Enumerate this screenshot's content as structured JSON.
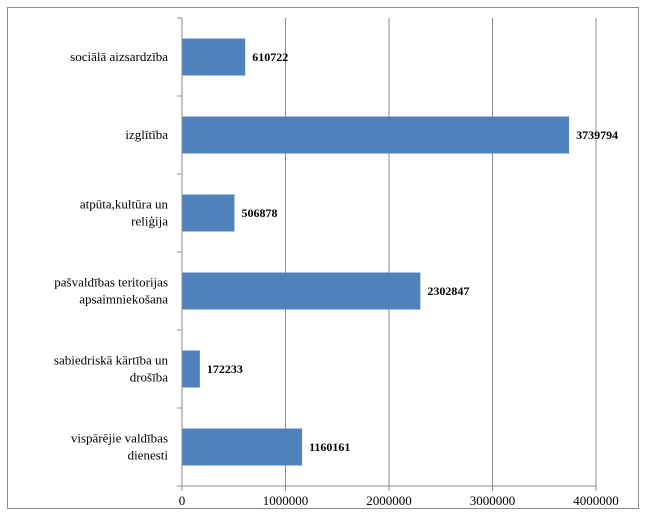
{
  "chart_data": {
    "type": "bar",
    "orientation": "horizontal",
    "categories": [
      "sociālā aizsardzība",
      "izglītība",
      "atpūta,kultūra un reliģija",
      "pašvaldības teritorijas apsaimniekošana",
      "sabiedriskā kārtība un drošība",
      "vispārējie valdības dienesti"
    ],
    "category_lines": [
      [
        "sociālā aizsardzība"
      ],
      [
        "izglītība"
      ],
      [
        "atpūta,kultūra un",
        "reliģija"
      ],
      [
        "pašvaldības teritorijas",
        "apsaimniekošana"
      ],
      [
        "sabiedriskā kārtība un",
        "drošība"
      ],
      [
        "vispārējie valdības",
        "dienesti"
      ]
    ],
    "values": [
      610722,
      3739794,
      506878,
      2302847,
      172233,
      1160161
    ],
    "value_labels": [
      "610722",
      "3739794",
      "506878",
      "2302847",
      "172233",
      "1160161"
    ],
    "xlim": [
      0,
      4000000
    ],
    "xticks": [
      0,
      1000000,
      2000000,
      3000000,
      4000000
    ],
    "xtick_labels": [
      "0",
      "1000000",
      "2000000",
      "3000000",
      "4000000"
    ],
    "title": "",
    "xlabel": "",
    "ylabel": "",
    "grid": "vertical",
    "legend": "none",
    "bar_color": "#4f81bd",
    "grid_color": "#8c8c8c"
  }
}
